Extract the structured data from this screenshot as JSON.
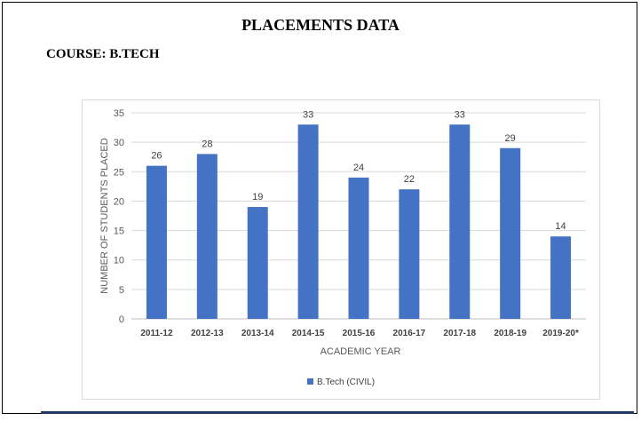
{
  "page": {
    "title": "PLACEMENTS DATA",
    "course": "COURSE: B.TECH"
  },
  "chart_data": {
    "type": "bar",
    "categories": [
      "2011-12",
      "2012-13",
      "2013-14",
      "2014-15",
      "2015-16",
      "2016-17",
      "2017-18",
      "2018-19",
      "2019-20*"
    ],
    "series": [
      {
        "name": "B.Tech (CIVIL)",
        "values": [
          26,
          28,
          19,
          33,
          24,
          22,
          33,
          29,
          14
        ],
        "color": "#4472c4"
      }
    ],
    "xlabel": "ACADEMIC YEAR",
    "ylabel": "NUMBER OF STUDENTS PLACED",
    "ylim": [
      0,
      35
    ],
    "yticks": [
      0,
      5,
      10,
      15,
      20,
      25,
      30,
      35
    ],
    "grid": true,
    "data_labels": true,
    "legend": "bottom-center"
  }
}
